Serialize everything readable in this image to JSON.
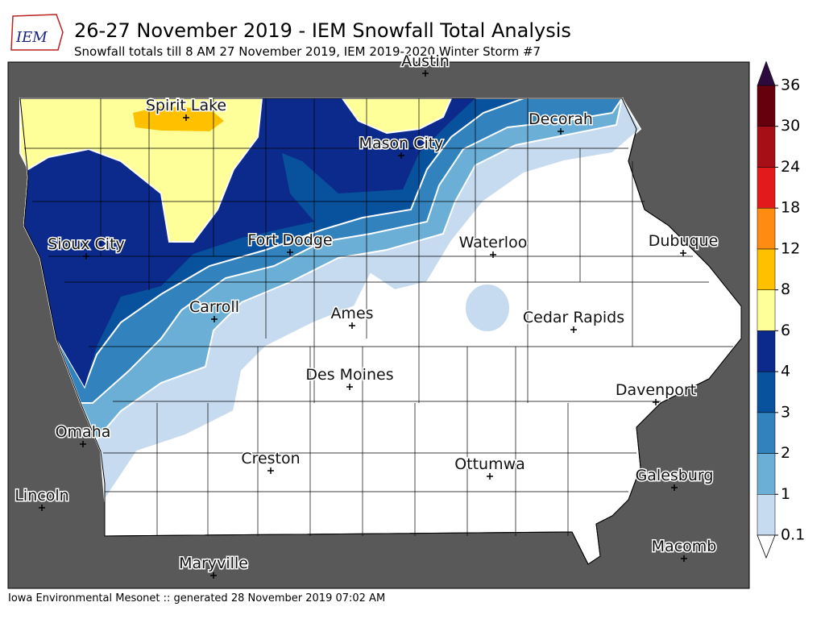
{
  "header": {
    "title": "26-27 November 2019 - IEM Snowfall Total Analysis",
    "subtitle": "Snowfall totals till 8 AM 27 November 2019, IEM 2019-2020 Winter Storm #7",
    "logo": "IEM"
  },
  "cities": [
    "Austin",
    "Spirit Lake",
    "Decorah",
    "Mason City",
    "Sioux City",
    "Fort Dodge",
    "Waterloo",
    "Dubuque",
    "Carroll",
    "Ames",
    "Cedar Rapids",
    "Des Moines",
    "Davenport",
    "Omaha",
    "Creston",
    "Ottumwa",
    "Galesburg",
    "Lincoln",
    "Maryville",
    "Macomb"
  ],
  "legend": {
    "levels": [
      0.1,
      1,
      2,
      3,
      4,
      6,
      8,
      12,
      18,
      24,
      30,
      36
    ],
    "colors": [
      "#c6dbef",
      "#6baed6",
      "#3182bd",
      "#08519c",
      "#0c2a8c",
      "#ffff99",
      "#ffc000",
      "#ff8c10",
      "#e31a1c",
      "#a50f15",
      "#67000d"
    ]
  },
  "footer": "Iowa Environmental Mesonet :: generated 28 November 2019 07:02 AM"
}
